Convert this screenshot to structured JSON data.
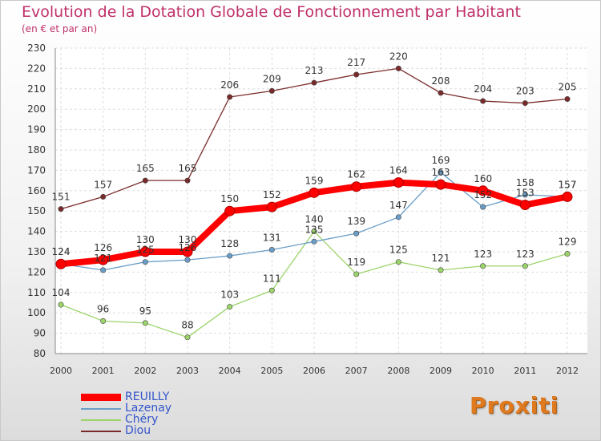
{
  "title": "Evolution de la Dotation Globale de Fonctionnement par Habitant",
  "subtitle": "(en € et par an)",
  "logo_text": "Proxiti",
  "chart_data": {
    "type": "line",
    "x": [
      "2000",
      "2001",
      "2002",
      "2003",
      "2004",
      "2005",
      "2006",
      "2007",
      "2008",
      "2009",
      "2010",
      "2011",
      "2012"
    ],
    "ylim": [
      80,
      230
    ],
    "yticks": [
      80,
      90,
      100,
      110,
      120,
      130,
      140,
      150,
      160,
      170,
      180,
      190,
      200,
      210,
      220,
      230
    ],
    "grid": true,
    "legend_position": "bottom-left",
    "series": [
      {
        "name": "REUILLY",
        "color": "#ff0000",
        "values": [
          124,
          126,
          130,
          130,
          150,
          152,
          159,
          162,
          164,
          163,
          160,
          153,
          157
        ]
      },
      {
        "name": "Lazenay",
        "color": "#6a9ec8",
        "values": [
          124,
          121,
          125,
          126,
          128,
          131,
          135,
          139,
          147,
          169,
          152,
          158,
          157
        ]
      },
      {
        "name": "Chéry",
        "color": "#9cd46a",
        "values": [
          104,
          96,
          95,
          88,
          103,
          111,
          140,
          119,
          125,
          121,
          123,
          123,
          129
        ]
      },
      {
        "name": "Diou",
        "color": "#7a2a2a",
        "values": [
          151,
          157,
          165,
          165,
          206,
          209,
          213,
          217,
          220,
          208,
          204,
          203,
          205
        ]
      }
    ]
  }
}
